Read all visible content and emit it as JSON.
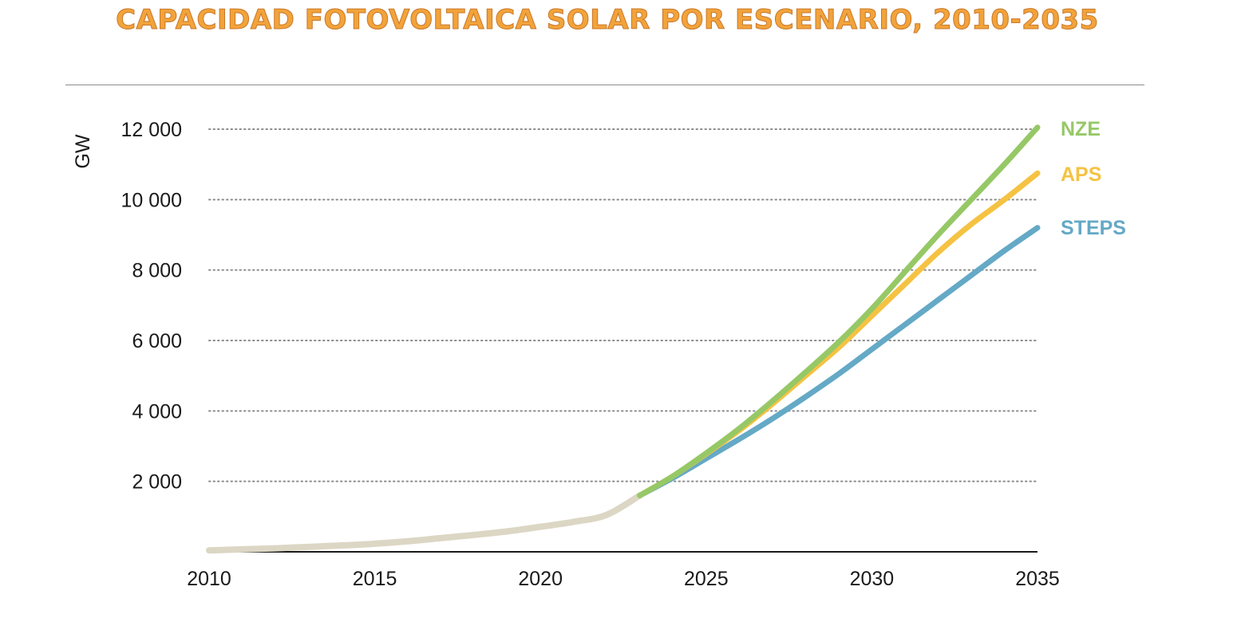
{
  "chart_data": {
    "type": "line",
    "title": "CAPACIDAD FOTOVOLTAICA SOLAR POR ESCENARIO, 2010-2035",
    "ylabel": "GW",
    "xlabel": "",
    "xlim": [
      2010,
      2035
    ],
    "ylim": [
      0,
      12000
    ],
    "x_ticks": [
      "2010",
      "2015",
      "2020",
      "2025",
      "2030",
      "2035"
    ],
    "x_tick_values": [
      2010,
      2015,
      2020,
      2025,
      2030,
      2035
    ],
    "y_ticks": [
      "2 000",
      "4 000",
      "6 000",
      "8 000",
      "10 000",
      "12 000"
    ],
    "y_tick_values": [
      2000,
      4000,
      6000,
      8000,
      10000,
      12000
    ],
    "grid": "horizontal dotted",
    "legend": "right of lines, at line ends",
    "colors": {
      "title": "#f2a33a",
      "historical": "#dcd6c4",
      "STEPS": "#64a9c6",
      "APS": "#f5c242",
      "NZE": "#96c866",
      "grid": "#8c8c8c",
      "axis": "#1a1a1a"
    },
    "historical": {
      "x": [
        2010,
        2011,
        2012,
        2013,
        2014,
        2015,
        2016,
        2017,
        2018,
        2019,
        2020,
        2021,
        2022,
        2023
      ],
      "values": [
        40,
        70,
        100,
        140,
        180,
        230,
        300,
        390,
        480,
        580,
        710,
        850,
        1050,
        1600
      ]
    },
    "series": [
      {
        "name": "STEPS",
        "x": [
          2023,
          2024,
          2025,
          2026,
          2027,
          2028,
          2029,
          2030,
          2031,
          2032,
          2033,
          2034,
          2035
        ],
        "values": [
          1600,
          2100,
          2650,
          3200,
          3780,
          4400,
          5050,
          5750,
          6450,
          7150,
          7850,
          8550,
          9200
        ]
      },
      {
        "name": "APS",
        "x": [
          2023,
          2024,
          2025,
          2026,
          2027,
          2028,
          2029,
          2030,
          2031,
          2032,
          2033,
          2034,
          2035
        ],
        "values": [
          1600,
          2150,
          2780,
          3450,
          4200,
          5000,
          5800,
          6700,
          7600,
          8500,
          9300,
          10000,
          10750
        ]
      },
      {
        "name": "NZE",
        "x": [
          2023,
          2024,
          2025,
          2026,
          2027,
          2028,
          2029,
          2030,
          2031,
          2032,
          2033,
          2034,
          2035
        ],
        "values": [
          1600,
          2150,
          2800,
          3500,
          4280,
          5100,
          5950,
          6900,
          7950,
          9000,
          10000,
          11000,
          12050
        ]
      }
    ]
  }
}
